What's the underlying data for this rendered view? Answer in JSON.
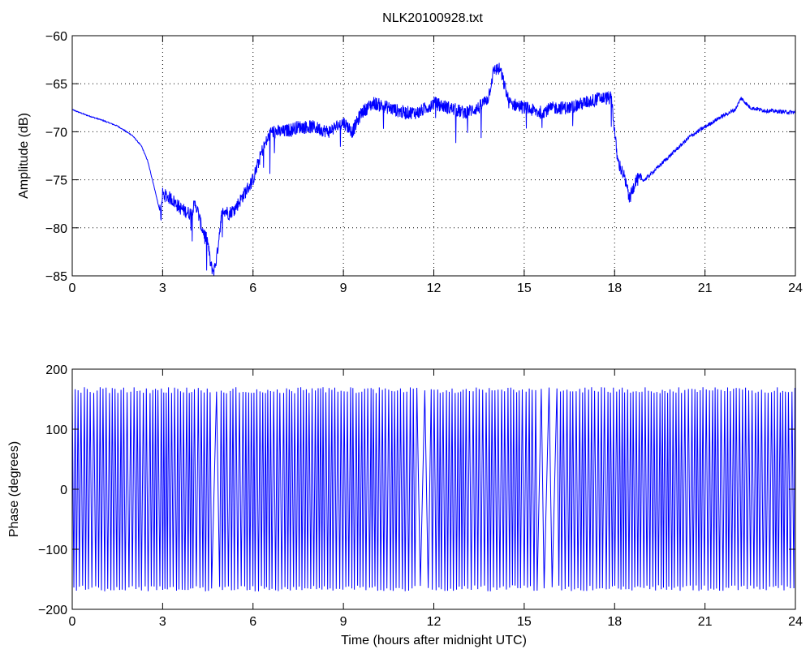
{
  "figure": {
    "title": "NLK20100928.txt",
    "line_color": "#0000ff",
    "grid_style": "dotted",
    "background": "#ffffff"
  },
  "chart_data": [
    {
      "type": "line",
      "title": "NLK20100928.txt",
      "xlabel": "",
      "ylabel": "Amplitude (dB)",
      "xlim": [
        0,
        24
      ],
      "ylim": [
        -85,
        -60
      ],
      "xticks": [
        0,
        3,
        6,
        9,
        12,
        15,
        18,
        21,
        24
      ],
      "yticks": [
        -85,
        -80,
        -75,
        -70,
        -65,
        -60
      ],
      "grid": true,
      "series": [
        {
          "x": [
            0,
            0.5,
            1.0,
            1.5,
            2.0,
            2.3,
            2.5,
            2.7,
            2.85,
            2.95,
            3.0,
            3.3,
            3.6,
            3.9,
            4.1,
            4.3,
            4.5,
            4.6,
            4.7,
            4.8,
            4.9,
            5.0,
            5.2,
            5.4,
            5.6,
            6.0,
            6.3,
            6.6,
            7.0,
            7.5,
            8.0,
            8.5,
            9.0,
            9.3,
            9.6,
            10.0,
            10.5,
            11.0,
            11.5,
            12.0,
            12.5,
            13.0,
            13.5,
            13.8,
            14.0,
            14.2,
            14.5,
            15.0,
            15.5,
            16.0,
            16.5,
            17.0,
            17.5,
            17.9,
            18.0,
            18.1,
            18.3,
            18.5,
            18.7,
            19.0,
            19.5,
            20.0,
            20.5,
            21.0,
            21.5,
            22.0,
            22.2,
            22.5,
            23.0,
            23.5,
            24.0
          ],
          "y": [
            -67.7,
            -68.3,
            -68.8,
            -69.4,
            -70.4,
            -71.5,
            -73.0,
            -75.5,
            -77.5,
            -78.8,
            -76.5,
            -77.0,
            -78.0,
            -78.5,
            -77.5,
            -80.0,
            -81.5,
            -84.0,
            -84.5,
            -83.0,
            -80.0,
            -78.0,
            -78.5,
            -78.0,
            -77.0,
            -75.0,
            -72.0,
            -70.0,
            -70.0,
            -69.5,
            -69.5,
            -70.0,
            -69.0,
            -70.0,
            -68.0,
            -67.0,
            -67.5,
            -68.0,
            -68.0,
            -67.0,
            -67.5,
            -68.0,
            -67.5,
            -66.5,
            -63.5,
            -63.5,
            -67.0,
            -67.5,
            -68.0,
            -67.5,
            -67.5,
            -67.0,
            -66.5,
            -66.5,
            -70.0,
            -73.0,
            -74.5,
            -77.0,
            -75.0,
            -75.0,
            -73.5,
            -72.0,
            -70.5,
            -69.5,
            -68.5,
            -67.7,
            -66.5,
            -67.5,
            -67.8,
            -67.9,
            -68.0
          ]
        }
      ]
    },
    {
      "type": "line",
      "title": "",
      "xlabel": "Time (hours after midnight UTC)",
      "ylabel": "Phase (degrees)",
      "xlim": [
        0,
        24
      ],
      "ylim": [
        -200,
        200
      ],
      "xticks": [
        0,
        3,
        6,
        9,
        12,
        15,
        18,
        21,
        24
      ],
      "yticks": [
        -200,
        -100,
        0,
        100,
        200
      ],
      "grid": false,
      "series": [
        {
          "description_of_shape": "",
          "phase_wrap_limits": [
            -180,
            180
          ],
          "typical_amplitude": 170,
          "x": [
            0,
            24
          ],
          "y": [
            -170,
            170
          ]
        }
      ]
    }
  ]
}
